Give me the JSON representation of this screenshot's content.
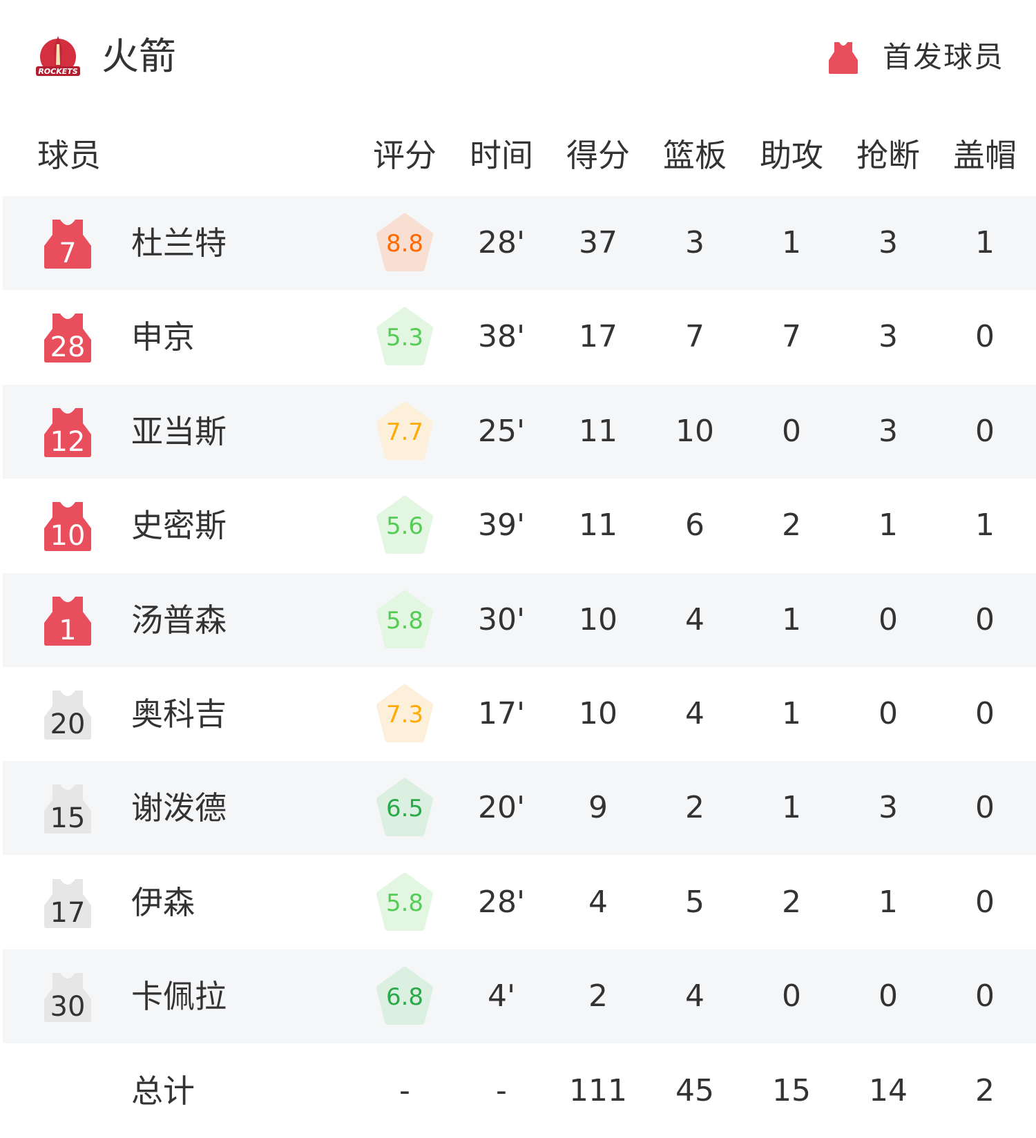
{
  "header": {
    "team_name": "火箭",
    "logo_text": "ROCKETS",
    "legend_label": "首发球员",
    "legend_icon": "jersey-icon"
  },
  "columns": [
    "球员",
    "评分",
    "时间",
    "得分",
    "篮板",
    "助攻",
    "抢断",
    "盖帽"
  ],
  "colors": {
    "starter_jersey": "#e84e5c",
    "bench_jersey": "#e6e6e6",
    "alt_row": "#f5f6f8"
  },
  "players": [
    {
      "number": "7",
      "name": "杜兰特",
      "starter": true,
      "rating": "8.8",
      "rating_tier": "orange",
      "time": "28'",
      "pts": "37",
      "reb": "3",
      "ast": "1",
      "stl": "3",
      "blk": "1"
    },
    {
      "number": "28",
      "name": "申京",
      "starter": true,
      "rating": "5.3",
      "rating_tier": "lightgreen",
      "time": "38'",
      "pts": "17",
      "reb": "7",
      "ast": "7",
      "stl": "3",
      "blk": "0"
    },
    {
      "number": "12",
      "name": "亚当斯",
      "starter": true,
      "rating": "7.7",
      "rating_tier": "yellow",
      "time": "25'",
      "pts": "11",
      "reb": "10",
      "ast": "0",
      "stl": "3",
      "blk": "0"
    },
    {
      "number": "10",
      "name": "史密斯",
      "starter": true,
      "rating": "5.6",
      "rating_tier": "lightgreen",
      "time": "39'",
      "pts": "11",
      "reb": "6",
      "ast": "2",
      "stl": "1",
      "blk": "1"
    },
    {
      "number": "1",
      "name": "汤普森",
      "starter": true,
      "rating": "5.8",
      "rating_tier": "lightgreen",
      "time": "30'",
      "pts": "10",
      "reb": "4",
      "ast": "1",
      "stl": "0",
      "blk": "0"
    },
    {
      "number": "20",
      "name": "奥科吉",
      "starter": false,
      "rating": "7.3",
      "rating_tier": "yellow",
      "time": "17'",
      "pts": "10",
      "reb": "4",
      "ast": "1",
      "stl": "0",
      "blk": "0"
    },
    {
      "number": "15",
      "name": "谢泼德",
      "starter": false,
      "rating": "6.5",
      "rating_tier": "green",
      "time": "20'",
      "pts": "9",
      "reb": "2",
      "ast": "1",
      "stl": "3",
      "blk": "0"
    },
    {
      "number": "17",
      "name": "伊森",
      "starter": false,
      "rating": "5.8",
      "rating_tier": "lightgreen",
      "time": "28'",
      "pts": "4",
      "reb": "5",
      "ast": "2",
      "stl": "1",
      "blk": "0"
    },
    {
      "number": "30",
      "name": "卡佩拉",
      "starter": false,
      "rating": "6.8",
      "rating_tier": "green",
      "time": "4'",
      "pts": "2",
      "reb": "4",
      "ast": "0",
      "stl": "0",
      "blk": "0"
    }
  ],
  "totals": {
    "label": "总计",
    "rating": "-",
    "time": "-",
    "pts": "111",
    "reb": "45",
    "ast": "15",
    "stl": "14",
    "blk": "2"
  },
  "rating_colors": {
    "orange": {
      "text": "#ff6a00",
      "bg": "#f9dfd2"
    },
    "yellow": {
      "text": "#ffaa00",
      "bg": "#fdf0da"
    },
    "lightgreen": {
      "text": "#55cc55",
      "bg": "#e3f6e2"
    },
    "green": {
      "text": "#2aa94a",
      "bg": "#dcf0e2"
    }
  }
}
